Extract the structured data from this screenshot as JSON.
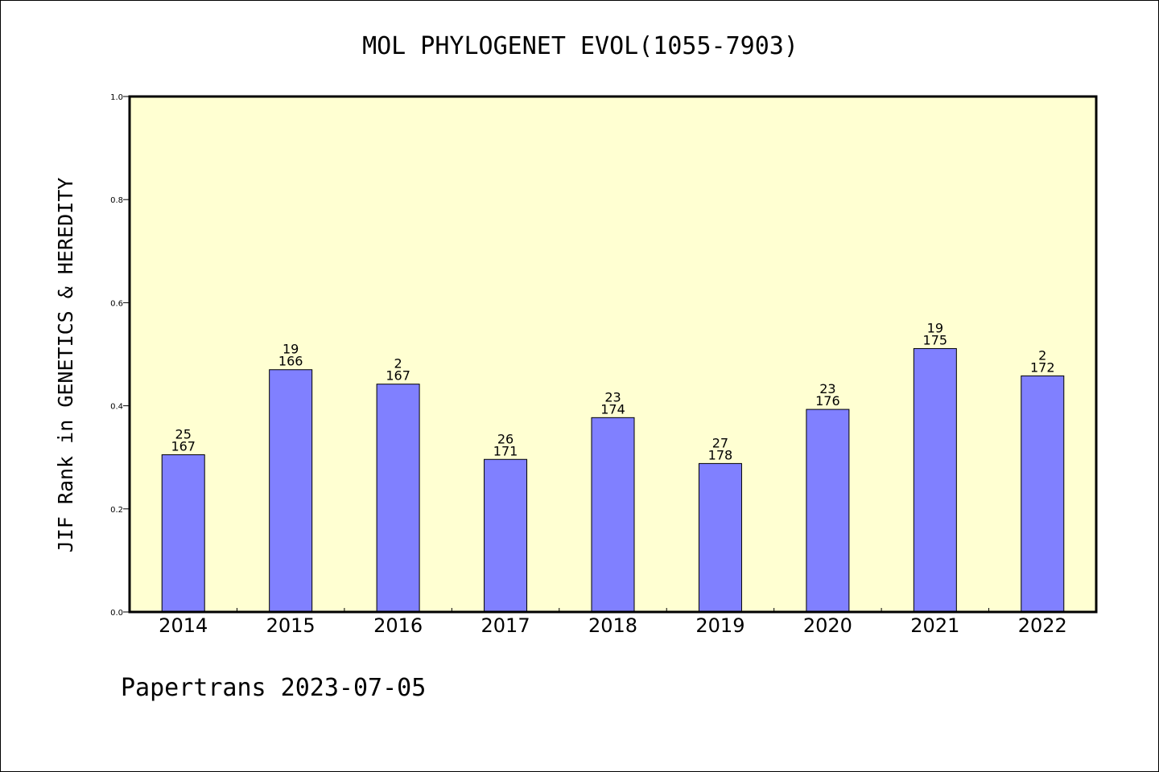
{
  "chart_data": {
    "type": "bar",
    "title": "MOL PHYLOGENET EVOL(1055-7903)",
    "xlabel": "",
    "ylabel": "JIF Rank in GENETICS & HEREDITY",
    "ylim": [
      0,
      1.0
    ],
    "yticks": [
      "0.0",
      "0.2",
      "0.4",
      "0.6",
      "0.8",
      "1.0"
    ],
    "categories": [
      "2014",
      "2015",
      "2016",
      "2017",
      "2018",
      "2019",
      "2020",
      "2021",
      "2022"
    ],
    "values": [
      0.305,
      0.47,
      0.442,
      0.296,
      0.377,
      0.288,
      0.393,
      0.511,
      0.458
    ],
    "labels": [
      [
        "25",
        "167"
      ],
      [
        "19",
        "166"
      ],
      [
        "2",
        "167"
      ],
      [
        "26",
        "171"
      ],
      [
        "23",
        "174"
      ],
      [
        "27",
        "178"
      ],
      [
        "23",
        "176"
      ],
      [
        "19",
        "175"
      ],
      [
        "2",
        "172"
      ]
    ],
    "grid": false,
    "colors": {
      "plot_bg": "#ffffd2",
      "bar": "#8080ff",
      "bar_edge": "#000000"
    }
  },
  "footer": "Papertrans 2023-07-05"
}
